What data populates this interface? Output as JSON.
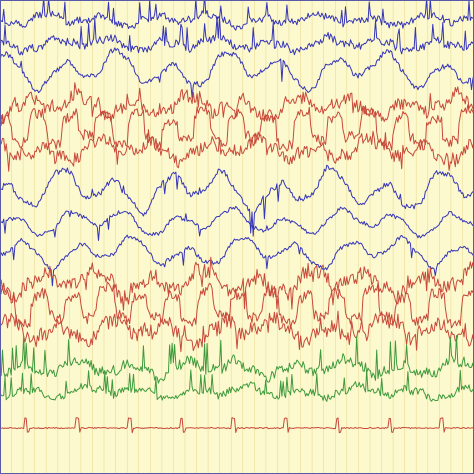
{
  "recording": {
    "background_color": "#fcf9cf",
    "grid_color": "#eadb96",
    "frame_color": "#5a5aa8",
    "vertical_grid_lines": 40,
    "channels": [
      {
        "group": "upper-left",
        "color": "#3535b8",
        "seed": 11,
        "style": "spiky",
        "amp": 9
      },
      {
        "group": "upper-left",
        "color": "#3535b8",
        "seed": 12,
        "style": "spiky",
        "amp": 10
      },
      {
        "group": "upper-left",
        "color": "#3535b8",
        "seed": 13,
        "style": "slow",
        "amp": 20
      },
      {
        "group": "left-temporal",
        "color": "#c8493a",
        "seed": 21,
        "style": "mixed",
        "amp": 14
      },
      {
        "group": "left-temporal",
        "color": "#c8493a",
        "seed": 22,
        "style": "square",
        "amp": 16
      },
      {
        "group": "left-temporal",
        "color": "#c8493a",
        "seed": 23,
        "style": "mixed",
        "amp": 14
      },
      {
        "group": "upper-right",
        "color": "#3535b8",
        "seed": 31,
        "style": "slow",
        "amp": 22
      },
      {
        "group": "upper-right",
        "color": "#3535b8",
        "seed": 32,
        "style": "slow",
        "amp": 14
      },
      {
        "group": "upper-right",
        "color": "#3535b8",
        "seed": 33,
        "style": "slow",
        "amp": 16
      },
      {
        "group": "right-temporal",
        "color": "#c8493a",
        "seed": 41,
        "style": "mixed",
        "amp": 17
      },
      {
        "group": "right-temporal",
        "color": "#c8493a",
        "seed": 42,
        "style": "square",
        "amp": 16
      },
      {
        "group": "right-temporal",
        "color": "#c8493a",
        "seed": 43,
        "style": "mixed",
        "amp": 16
      },
      {
        "group": "midline",
        "color": "#3f9a3c",
        "seed": 51,
        "style": "spiky",
        "amp": 13
      },
      {
        "group": "midline",
        "color": "#3f9a3c",
        "seed": 52,
        "style": "spiky",
        "amp": 9
      },
      {
        "group": "ecg",
        "color": "#c8493a",
        "seed": 61,
        "style": "ecg",
        "amp": 7
      }
    ]
  }
}
